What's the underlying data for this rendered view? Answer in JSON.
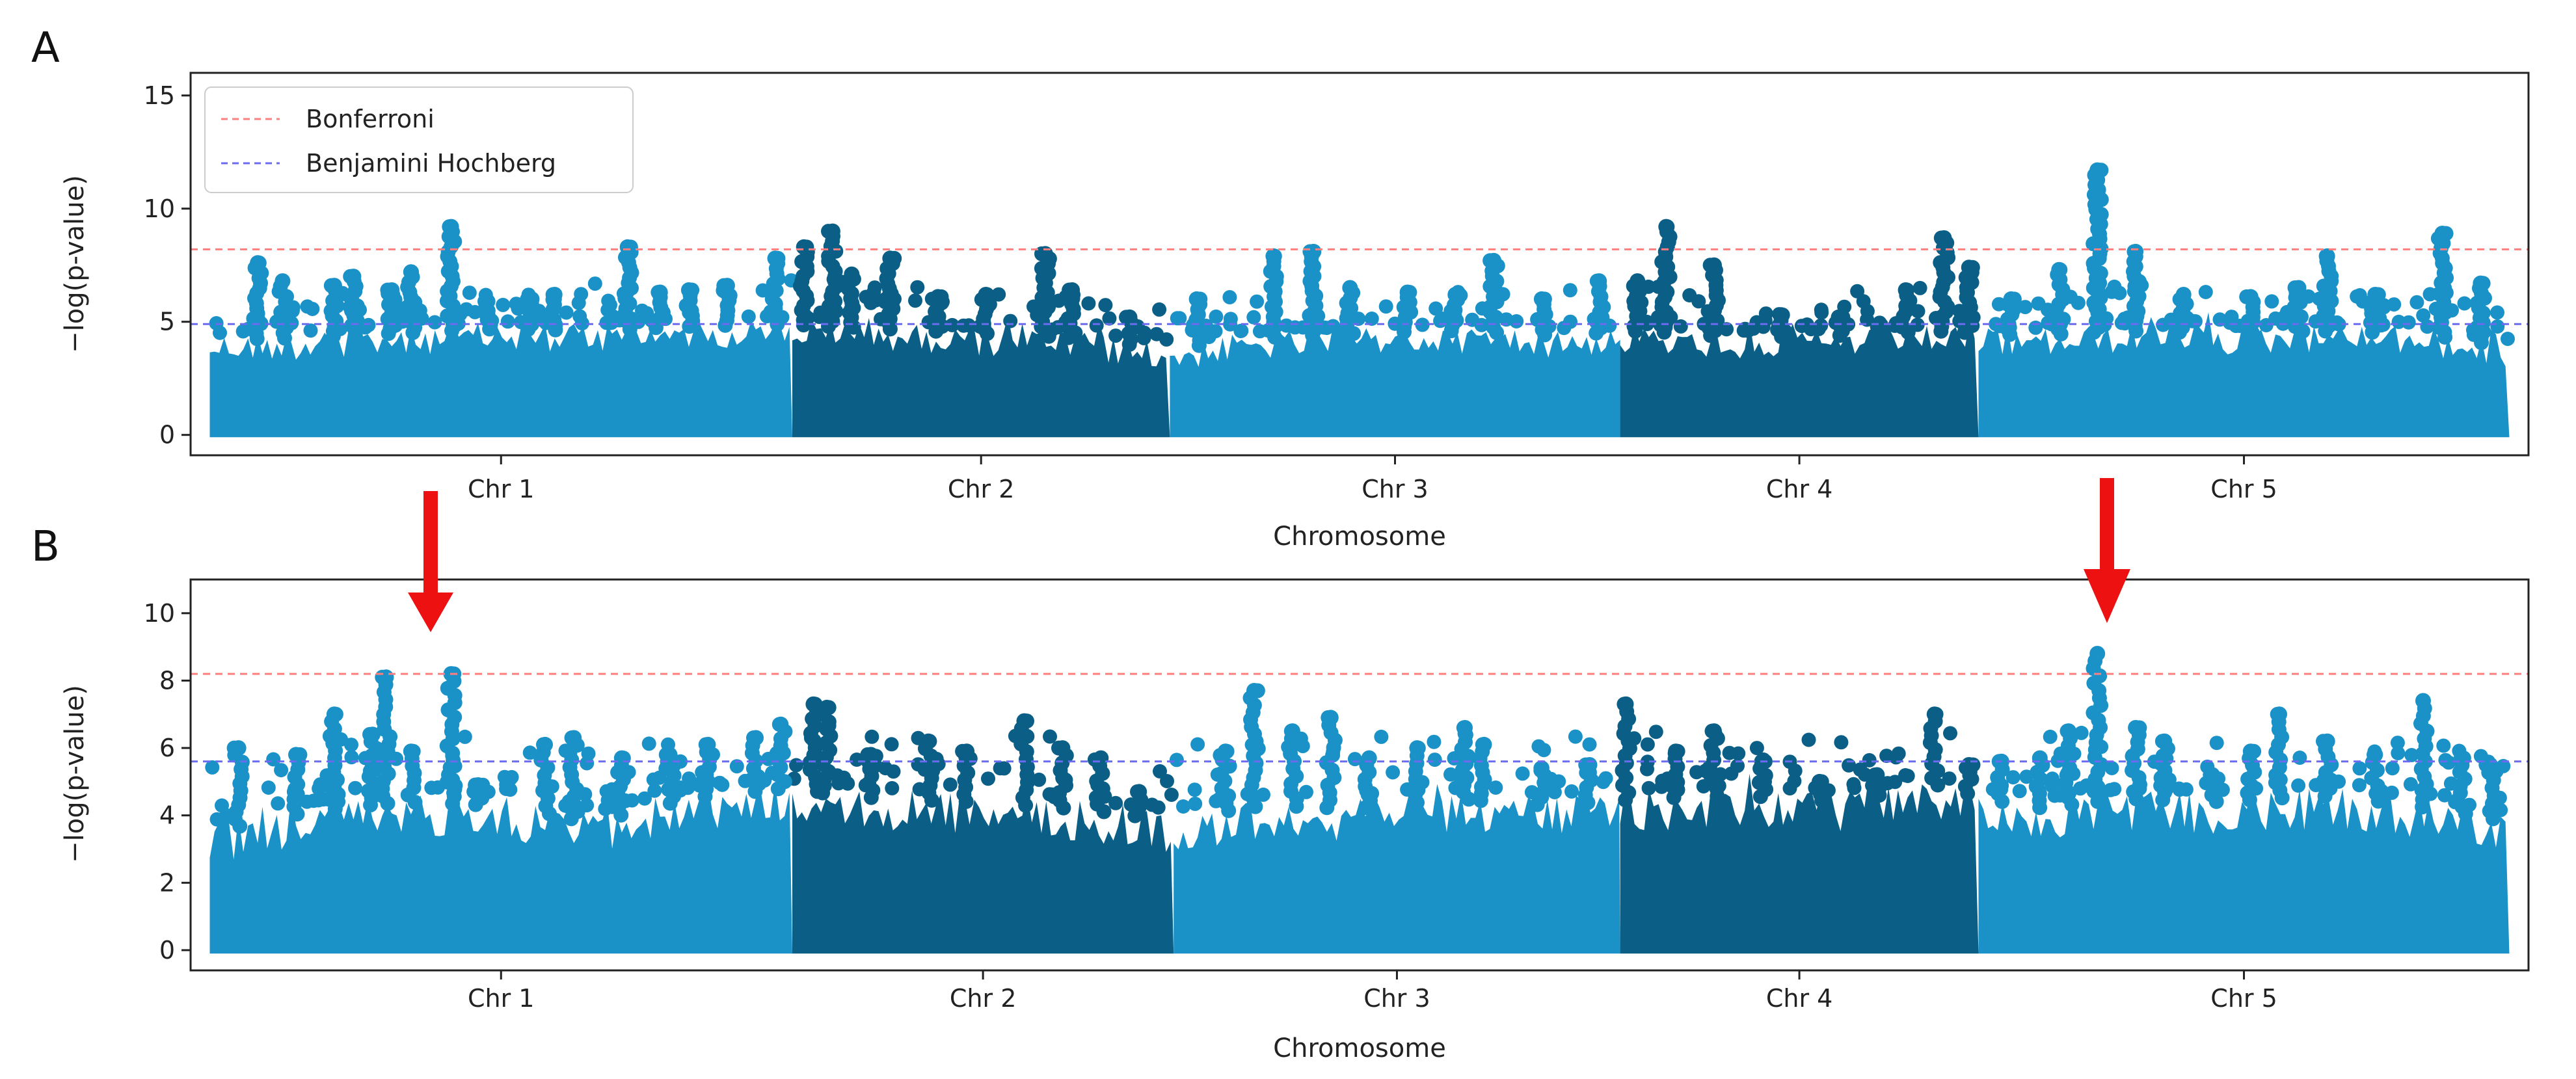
{
  "chart_data": [
    {
      "panel": "A",
      "type": "scatter",
      "subtype": "manhattan",
      "xlabel": "Chromosome",
      "ylabel": "−log(p-value)",
      "ylim": [
        -0.9,
        16
      ],
      "yticks": [
        0,
        5,
        10,
        15
      ],
      "categories": [
        "Chr 1",
        "Chr 2",
        "Chr 3",
        "Chr 4",
        "Chr 5"
      ],
      "chromosome_spans": [
        [
          0,
          30.4
        ],
        [
          30.4,
          50.1
        ],
        [
          50.1,
          73.6
        ],
        [
          73.6,
          92.3
        ],
        [
          92.3,
          120
        ]
      ],
      "chromosome_colors": [
        "#1a92c8",
        "#0b5f86",
        "#1a92c8",
        "#0b5f86",
        "#1a92c8"
      ],
      "thresholds": [
        {
          "name": "Bonferroni",
          "value": 8.2,
          "color": "#ff7f7f"
        },
        {
          "name": "Benjamini Hochberg",
          "value": 4.9,
          "color": "#6b6bf0"
        }
      ],
      "legend": {
        "position": "top-left",
        "entries": [
          "Bonferroni",
          "Benjamini Hochberg"
        ]
      },
      "baseline_envelope": [
        [
          0,
          4.5
        ],
        [
          5,
          4.6
        ],
        [
          10,
          4.8
        ],
        [
          15,
          5.0
        ],
        [
          20,
          4.9
        ],
        [
          25,
          5.1
        ],
        [
          30,
          5.2
        ],
        [
          35,
          5.0
        ],
        [
          40,
          4.8
        ],
        [
          45,
          4.6
        ],
        [
          50,
          4.1
        ],
        [
          55,
          4.6
        ],
        [
          60,
          4.8
        ],
        [
          65,
          4.9
        ],
        [
          70,
          4.7
        ],
        [
          75,
          4.9
        ],
        [
          80,
          4.6
        ],
        [
          85,
          4.7
        ],
        [
          90,
          4.9
        ],
        [
          95,
          4.7
        ],
        [
          100,
          4.9
        ],
        [
          105,
          4.8
        ],
        [
          110,
          4.9
        ],
        [
          115,
          4.8
        ],
        [
          120,
          4.2
        ]
      ],
      "peaks": [
        {
          "x": 2.5,
          "y": 7.6
        },
        {
          "x": 3.8,
          "y": 6.8
        },
        {
          "x": 6.5,
          "y": 6.6
        },
        {
          "x": 7.5,
          "y": 7.0
        },
        {
          "x": 9.5,
          "y": 6.4
        },
        {
          "x": 10.5,
          "y": 7.2
        },
        {
          "x": 12.6,
          "y": 9.2
        },
        {
          "x": 14.5,
          "y": 5.9
        },
        {
          "x": 16.8,
          "y": 6.0
        },
        {
          "x": 18.0,
          "y": 6.2
        },
        {
          "x": 21.8,
          "y": 8.3
        },
        {
          "x": 23.5,
          "y": 6.3
        },
        {
          "x": 25.0,
          "y": 6.4
        },
        {
          "x": 27.0,
          "y": 6.6
        },
        {
          "x": 29.5,
          "y": 7.8
        },
        {
          "x": 31.0,
          "y": 8.3
        },
        {
          "x": 32.5,
          "y": 9.0
        },
        {
          "x": 33.5,
          "y": 7.1
        },
        {
          "x": 35.5,
          "y": 7.8
        },
        {
          "x": 38.0,
          "y": 6.1
        },
        {
          "x": 40.5,
          "y": 6.2
        },
        {
          "x": 43.6,
          "y": 8.0
        },
        {
          "x": 45.0,
          "y": 6.4
        },
        {
          "x": 48.0,
          "y": 5.2
        },
        {
          "x": 51.5,
          "y": 6.0
        },
        {
          "x": 55.5,
          "y": 7.9
        },
        {
          "x": 57.6,
          "y": 8.1
        },
        {
          "x": 59.5,
          "y": 6.5
        },
        {
          "x": 62.5,
          "y": 6.3
        },
        {
          "x": 65.0,
          "y": 6.2
        },
        {
          "x": 67.0,
          "y": 7.7
        },
        {
          "x": 69.5,
          "y": 6.0
        },
        {
          "x": 72.5,
          "y": 6.8
        },
        {
          "x": 74.5,
          "y": 6.8
        },
        {
          "x": 76.0,
          "y": 9.2
        },
        {
          "x": 78.5,
          "y": 7.5
        },
        {
          "x": 82.0,
          "y": 5.3
        },
        {
          "x": 85.0,
          "y": 5.2
        },
        {
          "x": 88.5,
          "y": 6.4
        },
        {
          "x": 90.5,
          "y": 8.7
        },
        {
          "x": 91.8,
          "y": 7.4
        },
        {
          "x": 94.0,
          "y": 6.0
        },
        {
          "x": 96.5,
          "y": 7.3
        },
        {
          "x": 98.5,
          "y": 11.7
        },
        {
          "x": 100.5,
          "y": 8.1
        },
        {
          "x": 103.0,
          "y": 6.2
        },
        {
          "x": 106.5,
          "y": 6.1
        },
        {
          "x": 109.0,
          "y": 6.5
        },
        {
          "x": 110.5,
          "y": 7.9
        },
        {
          "x": 113.0,
          "y": 6.2
        },
        {
          "x": 116.5,
          "y": 8.9
        },
        {
          "x": 118.5,
          "y": 6.7
        }
      ]
    },
    {
      "panel": "B",
      "type": "scatter",
      "subtype": "manhattan",
      "xlabel": "Chromosome",
      "ylabel": "−log(p-value)",
      "ylim": [
        -0.6,
        11
      ],
      "yticks": [
        0,
        2,
        4,
        6,
        8,
        10
      ],
      "categories": [
        "Chr 1",
        "Chr 2",
        "Chr 3",
        "Chr 4",
        "Chr 5"
      ],
      "chromosome_spans": [
        [
          0,
          30.4
        ],
        [
          30.4,
          50.3
        ],
        [
          50.3,
          73.6
        ],
        [
          73.6,
          92.3
        ],
        [
          92.3,
          120
        ]
      ],
      "chromosome_colors": [
        "#1a92c8",
        "#0b5f86",
        "#1a92c8",
        "#0b5f86",
        "#1a92c8"
      ],
      "thresholds": [
        {
          "name": "Bonferroni",
          "value": 8.2,
          "color": "#ff7f7f"
        },
        {
          "name": "Benjamini Hochberg",
          "value": 5.6,
          "color": "#6b6bf0"
        }
      ],
      "baseline_envelope": [
        [
          0,
          3.8
        ],
        [
          5,
          4.4
        ],
        [
          10,
          4.7
        ],
        [
          15,
          4.6
        ],
        [
          20,
          4.1
        ],
        [
          25,
          4.8
        ],
        [
          30,
          5.1
        ],
        [
          35,
          4.8
        ],
        [
          40,
          4.7
        ],
        [
          45,
          4.5
        ],
        [
          50,
          4.2
        ],
        [
          55,
          4.6
        ],
        [
          60,
          4.5
        ],
        [
          65,
          4.8
        ],
        [
          70,
          4.6
        ],
        [
          75,
          4.8
        ],
        [
          80,
          4.9
        ],
        [
          85,
          4.7
        ],
        [
          90,
          5.2
        ],
        [
          95,
          4.5
        ],
        [
          100,
          4.8
        ],
        [
          105,
          4.7
        ],
        [
          110,
          4.9
        ],
        [
          115,
          4.6
        ],
        [
          120,
          4.1
        ]
      ],
      "peaks": [
        {
          "x": 1.5,
          "y": 6.0
        },
        {
          "x": 4.5,
          "y": 5.8
        },
        {
          "x": 6.5,
          "y": 7.0
        },
        {
          "x": 8.5,
          "y": 6.4
        },
        {
          "x": 9.2,
          "y": 8.1
        },
        {
          "x": 10.5,
          "y": 5.9
        },
        {
          "x": 12.6,
          "y": 8.2
        },
        {
          "x": 14.0,
          "y": 4.9
        },
        {
          "x": 17.5,
          "y": 6.1
        },
        {
          "x": 19.0,
          "y": 6.3
        },
        {
          "x": 21.5,
          "y": 5.7
        },
        {
          "x": 24.0,
          "y": 5.8
        },
        {
          "x": 26.0,
          "y": 6.1
        },
        {
          "x": 28.5,
          "y": 6.3
        },
        {
          "x": 29.8,
          "y": 6.7
        },
        {
          "x": 31.5,
          "y": 7.3
        },
        {
          "x": 32.2,
          "y": 7.2
        },
        {
          "x": 34.5,
          "y": 5.8
        },
        {
          "x": 37.5,
          "y": 6.2
        },
        {
          "x": 39.5,
          "y": 5.9
        },
        {
          "x": 42.5,
          "y": 6.8
        },
        {
          "x": 44.5,
          "y": 6.0
        },
        {
          "x": 46.5,
          "y": 5.7
        },
        {
          "x": 48.5,
          "y": 4.7
        },
        {
          "x": 53.0,
          "y": 5.9
        },
        {
          "x": 54.5,
          "y": 7.7
        },
        {
          "x": 56.5,
          "y": 6.5
        },
        {
          "x": 58.5,
          "y": 6.9
        },
        {
          "x": 60.5,
          "y": 5.7
        },
        {
          "x": 63.0,
          "y": 6.0
        },
        {
          "x": 65.5,
          "y": 6.6
        },
        {
          "x": 66.5,
          "y": 6.1
        },
        {
          "x": 69.5,
          "y": 5.4
        },
        {
          "x": 72.0,
          "y": 5.5
        },
        {
          "x": 73.9,
          "y": 7.3
        },
        {
          "x": 76.5,
          "y": 5.9
        },
        {
          "x": 78.5,
          "y": 6.5
        },
        {
          "x": 81.0,
          "y": 5.6
        },
        {
          "x": 84.0,
          "y": 5.0
        },
        {
          "x": 87.0,
          "y": 5.2
        },
        {
          "x": 90.0,
          "y": 7.0
        },
        {
          "x": 91.8,
          "y": 5.5
        },
        {
          "x": 93.5,
          "y": 5.6
        },
        {
          "x": 95.5,
          "y": 5.7
        },
        {
          "x": 97.0,
          "y": 6.5
        },
        {
          "x": 98.5,
          "y": 8.8
        },
        {
          "x": 100.5,
          "y": 6.6
        },
        {
          "x": 102.0,
          "y": 6.2
        },
        {
          "x": 104.5,
          "y": 5.2
        },
        {
          "x": 106.5,
          "y": 5.9
        },
        {
          "x": 108.0,
          "y": 7.0
        },
        {
          "x": 110.5,
          "y": 6.2
        },
        {
          "x": 113.0,
          "y": 5.8
        },
        {
          "x": 115.5,
          "y": 7.4
        },
        {
          "x": 117.5,
          "y": 5.7
        },
        {
          "x": 119.0,
          "y": 5.5
        }
      ]
    }
  ],
  "annotations": {
    "panel_labels": [
      "A",
      "B"
    ],
    "arrows": [
      {
        "panel": "B",
        "x": 12.6,
        "color": "#ee1111",
        "points_to": "Chr 1 peak"
      },
      {
        "panel": "B",
        "x": 98.5,
        "color": "#ee1111",
        "points_to": "Chr 5 peak"
      }
    ]
  }
}
